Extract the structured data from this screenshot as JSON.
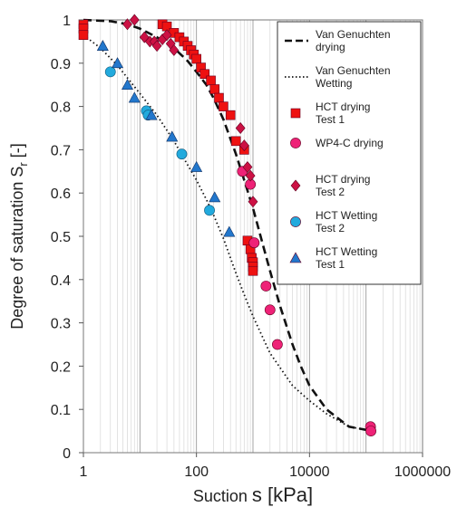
{
  "chart_data": {
    "type": "scatter",
    "xscale": "log",
    "xlim": [
      1,
      1000000
    ],
    "ylim": [
      0,
      1
    ],
    "x_ticks": [
      "1",
      "100",
      "10000",
      "1000000"
    ],
    "y_ticks": [
      "0",
      "0.1",
      "0.2",
      "0.3",
      "0.4",
      "0.5",
      "0.6",
      "0.7",
      "0.8",
      "0.9",
      "1"
    ],
    "xlabel": {
      "prefix": "Suction ",
      "symbol": "s",
      "unit": " [kPa]"
    },
    "ylabel": {
      "text": "Degree of saturation S",
      "sub": "r",
      "unit": " [-]"
    },
    "grid": "log-minor-vertical",
    "legend_position": "top-right",
    "colors": {
      "red": "#ee1111",
      "crimson": "#cc1144",
      "pink": "#ee2277",
      "cyan": "#22aadd",
      "blue": "#2277cc"
    },
    "series": [
      {
        "name": "Van Genuchten drying",
        "legend_lines": [
          "Van Genuchten",
          "drying"
        ],
        "kind": "line",
        "dash": "dashed",
        "x": [
          1,
          3,
          6,
          10,
          20,
          40,
          70,
          100,
          150,
          200,
          300,
          500,
          700,
          1000,
          1500,
          2000,
          3000,
          5000,
          7000,
          10000,
          20000,
          50000,
          130000
        ],
        "y": [
          1.0,
          0.997,
          0.99,
          0.98,
          0.96,
          0.935,
          0.905,
          0.88,
          0.85,
          0.82,
          0.77,
          0.69,
          0.63,
          0.565,
          0.48,
          0.42,
          0.34,
          0.25,
          0.2,
          0.155,
          0.1,
          0.06,
          0.05
        ]
      },
      {
        "name": "Van Genuchten Wetting",
        "legend_lines": [
          "Van Genuchten",
          "Wetting"
        ],
        "kind": "line",
        "dash": "dotted",
        "x": [
          1,
          2,
          4,
          7,
          10,
          20,
          40,
          60,
          100,
          150,
          200,
          300,
          500,
          700,
          1000,
          2000,
          5000,
          10000,
          20000,
          50000,
          130000
        ],
        "y": [
          0.965,
          0.935,
          0.895,
          0.855,
          0.83,
          0.78,
          0.72,
          0.68,
          0.63,
          0.585,
          0.55,
          0.495,
          0.415,
          0.365,
          0.315,
          0.23,
          0.155,
          0.12,
          0.09,
          0.06,
          0.05
        ]
      },
      {
        "name": "HCT drying Test 1",
        "legend_lines": [
          "HCT drying",
          "Test 1"
        ],
        "kind": "marker",
        "marker": "square",
        "color": "#ee1111",
        "x": [
          1,
          1,
          1,
          25,
          30,
          40,
          50,
          60,
          70,
          80,
          90,
          100,
          120,
          140,
          180,
          210,
          250,
          300,
          400,
          500,
          700,
          800,
          900,
          950,
          1000,
          1000,
          1000
        ],
        "y": [
          0.99,
          0.98,
          0.965,
          0.99,
          0.985,
          0.97,
          0.96,
          0.95,
          0.94,
          0.93,
          0.92,
          0.91,
          0.89,
          0.875,
          0.86,
          0.84,
          0.82,
          0.8,
          0.78,
          0.72,
          0.7,
          0.49,
          0.47,
          0.45,
          0.44,
          0.43,
          0.42
        ]
      },
      {
        "name": "WP4-C drying",
        "legend_lines": [
          "WP4-C drying"
        ],
        "kind": "marker",
        "marker": "circle",
        "color": "#ee2277",
        "x": [
          650,
          900,
          1050,
          1700,
          2000,
          2700,
          120000,
          122000
        ],
        "y": [
          0.65,
          0.62,
          0.485,
          0.385,
          0.33,
          0.25,
          0.06,
          0.05
        ]
      },
      {
        "name": "HCT drying Test 2",
        "legend_lines": [
          "HCT drying",
          "Test 2"
        ],
        "kind": "marker",
        "marker": "diamond",
        "color": "#cc1144",
        "x": [
          6,
          8,
          12,
          15,
          18,
          20,
          25,
          30,
          35,
          40,
          600,
          700,
          800,
          900,
          1000
        ],
        "y": [
          0.99,
          1.0,
          0.96,
          0.95,
          0.95,
          0.94,
          0.955,
          0.965,
          0.945,
          0.93,
          0.75,
          0.71,
          0.66,
          0.64,
          0.58
        ]
      },
      {
        "name": "HCT Wetting Test 2",
        "legend_lines": [
          "HCT Wetting",
          "Test 2"
        ],
        "kind": "marker",
        "marker": "circle",
        "color": "#22aadd",
        "x": [
          3,
          13,
          14,
          55,
          170
        ],
        "y": [
          0.88,
          0.79,
          0.78,
          0.69,
          0.56
        ]
      },
      {
        "name": "HCT Wetting Test 1",
        "legend_lines": [
          "HCT Wetting",
          "Test 1"
        ],
        "kind": "marker",
        "marker": "triangle",
        "color": "#2277cc",
        "x": [
          2.2,
          4,
          6,
          8,
          16,
          37,
          100,
          210,
          380
        ],
        "y": [
          0.94,
          0.9,
          0.85,
          0.82,
          0.78,
          0.73,
          0.66,
          0.59,
          0.51
        ]
      }
    ]
  }
}
